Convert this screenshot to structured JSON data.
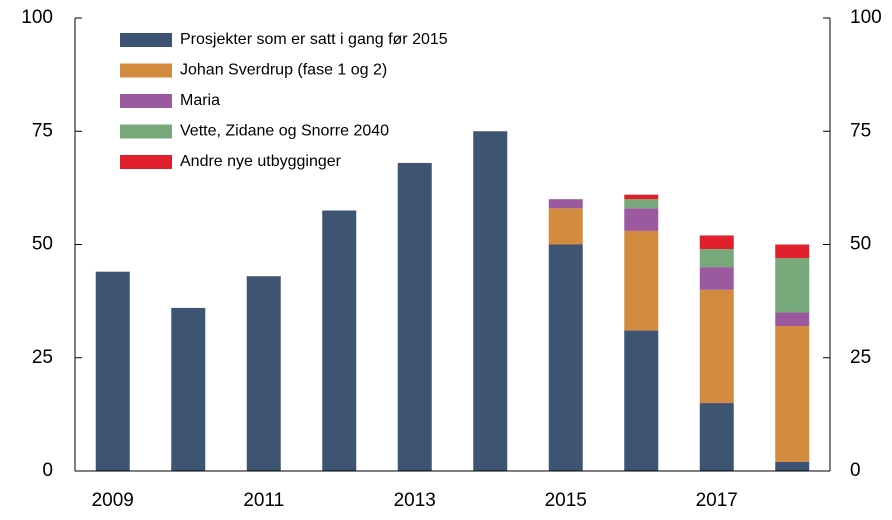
{
  "chart_data": {
    "type": "stacked_bar",
    "categories": [
      "2009",
      null,
      "2011",
      null,
      "2013",
      null,
      "2015",
      null,
      "2017",
      null
    ],
    "series": [
      {
        "name": "Prosjekter som er satt i gang før 2015",
        "color": "#3d5573",
        "values": [
          44,
          36,
          43,
          57.5,
          68,
          75,
          50,
          31,
          15,
          2
        ]
      },
      {
        "name": "Johan Sverdrup (fase 1 og 2)",
        "color": "#d28b3f",
        "values": [
          0,
          0,
          0,
          0,
          0,
          0,
          8,
          22,
          25,
          30
        ]
      },
      {
        "name": "Maria",
        "color": "#9b5aa0",
        "values": [
          0,
          0,
          0,
          0,
          0,
          0,
          2,
          5,
          5,
          3
        ]
      },
      {
        "name": "Vette, Zidane og Snorre 2040",
        "color": "#78a97a",
        "values": [
          0,
          0,
          0,
          0,
          0,
          0,
          0,
          2,
          4,
          12
        ]
      },
      {
        "name": "Andre nye utbygginger",
        "color": "#e0202c",
        "values": [
          0,
          0,
          0,
          0,
          0,
          0,
          0,
          1,
          3,
          3
        ]
      }
    ],
    "ylim": [
      0,
      100
    ],
    "yticks": [
      0,
      25,
      50,
      75,
      100
    ],
    "y2lim": [
      0,
      100
    ],
    "y2ticks": [
      0,
      25,
      50,
      75,
      100
    ],
    "legend": "upper-left"
  }
}
